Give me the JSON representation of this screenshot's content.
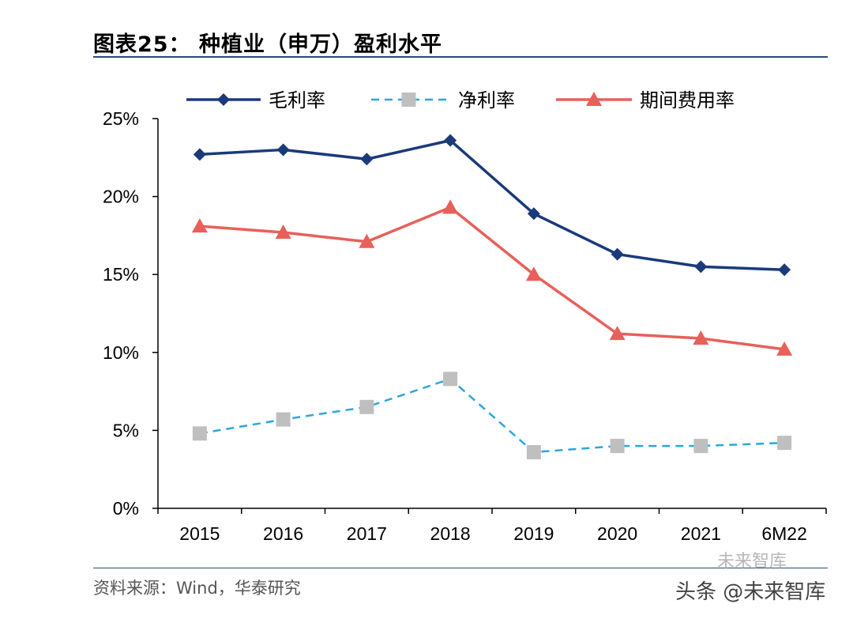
{
  "header": {
    "title": "图表25： 种植业（申万）盈利水平"
  },
  "footer": {
    "source": "资料来源：Wind，华泰研究"
  },
  "watermark": {
    "text": "头条 @未来智库",
    "logo_text": "未来智库"
  },
  "chart_data": {
    "type": "line",
    "categories": [
      "2015",
      "2016",
      "2017",
      "2018",
      "2019",
      "2020",
      "2021",
      "6M22"
    ],
    "ylim": [
      0,
      25
    ],
    "yticks": [
      "0%",
      "5%",
      "10%",
      "15%",
      "20%",
      "25%"
    ],
    "series": [
      {
        "name": "毛利率",
        "color": "#1a3a7a",
        "marker": "diamond",
        "dash": "solid",
        "values": [
          22.7,
          23.0,
          22.4,
          23.6,
          18.9,
          16.3,
          15.5,
          15.3
        ]
      },
      {
        "name": "净利率",
        "color": "#2aa8d8",
        "marker": "square",
        "marker_color": "#bfbfbf",
        "dash": "dashed",
        "values": [
          4.8,
          5.7,
          6.5,
          8.3,
          3.6,
          4.0,
          4.0,
          4.2
        ]
      },
      {
        "name": "期间费用率",
        "color": "#e8605a",
        "marker": "triangle",
        "dash": "solid",
        "values": [
          18.1,
          17.7,
          17.1,
          19.3,
          15.0,
          11.2,
          10.9,
          10.2
        ]
      }
    ]
  }
}
